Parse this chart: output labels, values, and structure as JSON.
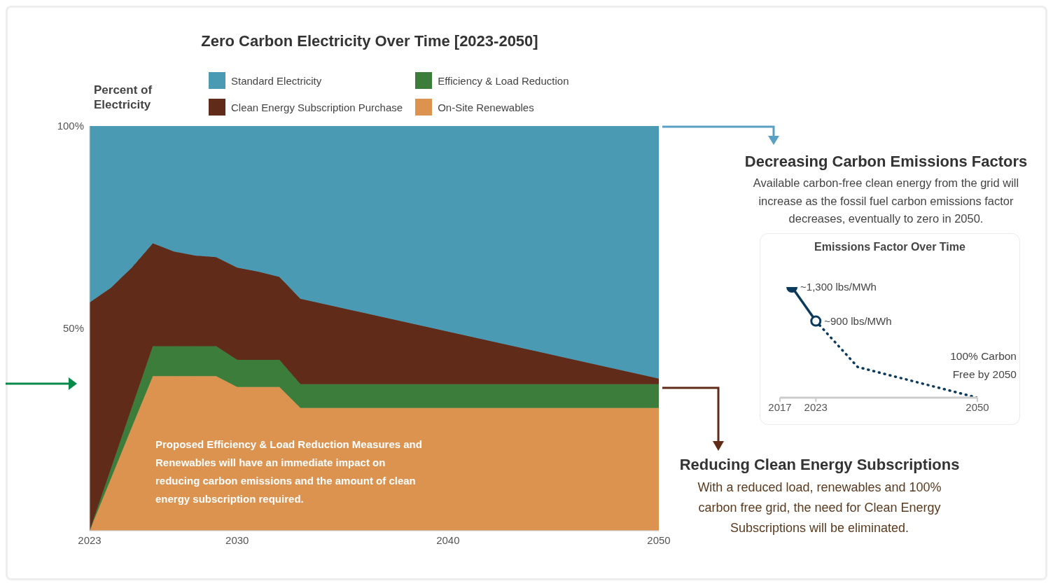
{
  "chart_data": [
    {
      "type": "area",
      "title": "Zero Carbon Electricity Over Time [2023-2050]",
      "ylabel": "Percent of Electricity",
      "stacked": true,
      "legend": "top",
      "grid": false,
      "x": [
        2023,
        2024,
        2025,
        2026,
        2027,
        2028,
        2029,
        2030,
        2031,
        2032,
        2033,
        2050
      ],
      "series": [
        {
          "name": "On-Site Renewables",
          "color": "#dc9350",
          "values": [
            0,
            12.7,
            25.5,
            38.2,
            38.2,
            38.2,
            38.2,
            35.5,
            35.5,
            35.5,
            30.3,
            30.3
          ]
        },
        {
          "name": "Efficiency & Load Reduction",
          "color": "#3c7d3b",
          "values": [
            0,
            2.5,
            4.9,
            7.4,
            7.4,
            7.4,
            7.4,
            6.7,
            6.7,
            6.7,
            5.9,
            5.9
          ]
        },
        {
          "name": "Clean Energy Subscription Purchase",
          "color": "#602c19",
          "values": [
            56.4,
            44.8,
            34.6,
            25.4,
            23.4,
            22.4,
            22,
            22.8,
            21.8,
            20.5,
            21.1,
            1.4
          ]
        },
        {
          "name": "Standard Electricity",
          "color": "#4b9ab4",
          "values": [
            43.6,
            40,
            35,
            29,
            31,
            32,
            32.4,
            35,
            36,
            37.3,
            42.7,
            62.4
          ]
        }
      ],
      "xlim": [
        2023,
        2050
      ],
      "xticks": [
        2023,
        2030,
        2040,
        2050
      ],
      "ylim": [
        0,
        100
      ],
      "yticks": [
        {
          "value": 50,
          "label": "50%"
        },
        {
          "value": 100,
          "label": "100%"
        }
      ],
      "annotations": [
        "Proposed Efficiency & Load Reduction Measures and Renewables will have an immediate impact on reducing carbon emissions and the amount of clean energy subscription required.",
        "Decreasing Carbon Emissions Factors",
        "Available carbon-free clean energy from the grid will increase as the fossil fuel carbon emissions factor decreases, eventually to zero in 2050.",
        "Reducing Clean Energy Subscriptions",
        "With a reduced load, renewables and 100% carbon free grid, the need for Clean Energy Subscriptions will be eliminated."
      ]
    },
    {
      "type": "line",
      "title": "Emissions Factor Over Time",
      "tick_labels": "x",
      "grid": false,
      "series": [
        {
          "color": "#0b3a5c",
          "x": [
            2019,
            2023
          ],
          "values": [
            1300,
            900
          ],
          "marker": "circle",
          "line_style": "solid",
          "value_labels": [
            "~1,300 lbs/MWh",
            "~900 lbs/MWh"
          ]
        },
        {
          "color": "#0b3a5c",
          "x": [
            2023,
            2030,
            2050
          ],
          "values": [
            900,
            360,
            0
          ],
          "marker": "none",
          "line_style": "dotted"
        }
      ],
      "xlim": [
        2017,
        2050
      ],
      "xticks": [
        2017,
        2023,
        2050
      ],
      "annotations": [
        "100% Carbon Free by 2050"
      ]
    }
  ]
}
